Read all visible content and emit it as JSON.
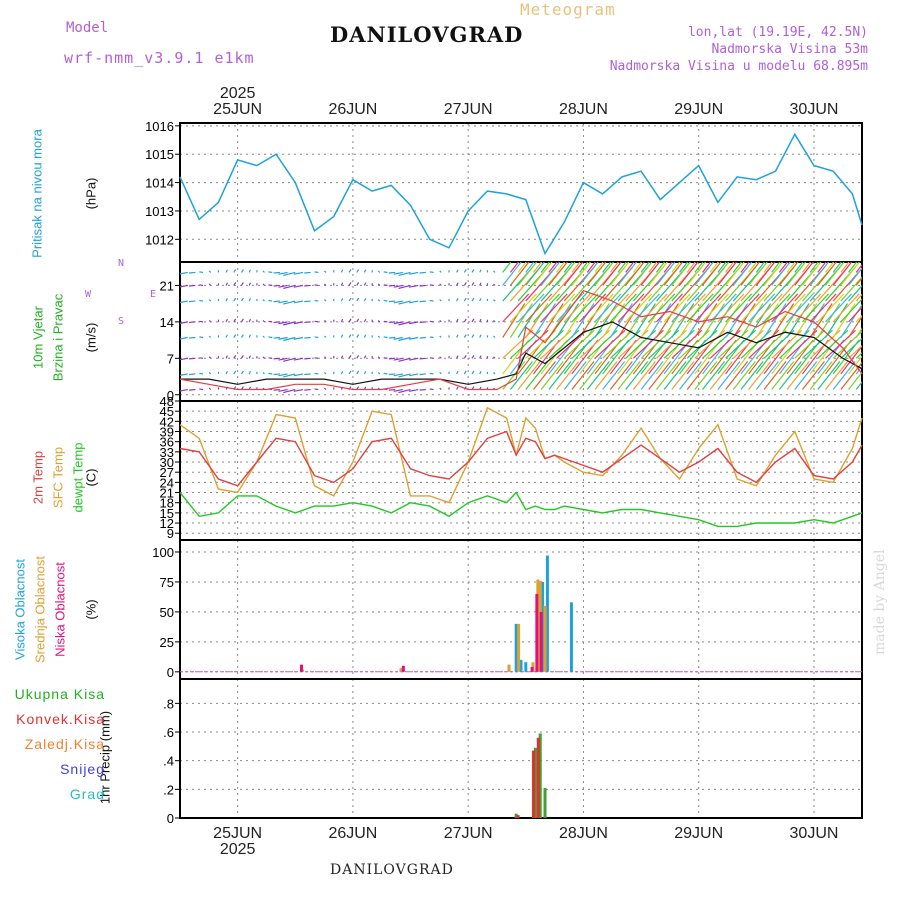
{
  "header": {
    "model_label": "Model",
    "model_name": "wrf-nmm_v3.9.1 e1km",
    "title": "DANILOVGRAD",
    "meteogram_label": "Meteogram",
    "lonlat": "lon,lat (19.19E, 42.5N)",
    "elevation": "Nadmorska Visina 53m",
    "model_elevation": "Nadmorska Visina u modelu 68.895m"
  },
  "footer": {
    "location": "DANILOVGRAD",
    "credit": "made by Angel"
  },
  "colors": {
    "pressure": "#1da2dc",
    "wind_label": "#22b022",
    "purple": "#b060d8",
    "temp2m": "#e04040",
    "sfc": "#e0a030",
    "dewpt": "#22c822",
    "high_cloud": "#1da2dc",
    "mid_cloud": "#e0a030",
    "low_cloud": "#e01080",
    "total_precip": "#40a030",
    "conv_precip": "#e03030",
    "frozen_precip": "#f08030",
    "snow": "#4040e0",
    "hail": "#20c0c0"
  },
  "chart_data": [
    {
      "type": "line",
      "id": "pressure",
      "ylabel_a": "Pritisak na nivou mora",
      "ylabel_b": "(hPa)",
      "ylim": [
        1011.2,
        1016.1
      ],
      "yticks": [
        1012,
        1013,
        1014,
        1015,
        1016
      ],
      "x_tick_labels": [
        "25JUN",
        "26JUN",
        "27JUN",
        "28JUN",
        "29JUN",
        "30JUN"
      ],
      "year_label": "2025",
      "grid": true,
      "x": [
        0,
        4,
        8,
        12,
        16,
        20,
        24,
        28,
        32,
        36,
        40,
        44,
        48,
        52,
        56,
        60,
        64,
        68,
        72,
        76,
        80,
        84,
        88,
        92,
        96,
        100,
        104,
        108,
        112,
        116,
        120,
        124,
        128,
        132,
        136,
        140,
        142
      ],
      "values": [
        1014.2,
        1012.7,
        1013.3,
        1014.8,
        1014.6,
        1015.0,
        1014.0,
        1012.3,
        1012.8,
        1014.1,
        1013.7,
        1013.9,
        1013.2,
        1012.0,
        1011.7,
        1013.0,
        1013.7,
        1013.6,
        1013.4,
        1011.5,
        1012.6,
        1014.0,
        1013.6,
        1014.2,
        1014.4,
        1013.4,
        1014.0,
        1014.6,
        1013.3,
        1014.2,
        1014.1,
        1014.4,
        1015.7,
        1014.6,
        1014.4,
        1013.6,
        1012.5
      ]
    },
    {
      "type": "line",
      "id": "wind",
      "ylabel_a": "10m Vjetar",
      "ylabel_b": "Brzina i Pravac",
      "ylabel_c": "(m/s)",
      "compass_n": "N",
      "compass_e": "E",
      "compass_w": "W",
      "compass_s": "S",
      "ylim": [
        -1.2,
        25.5
      ],
      "yticks": [
        0,
        7,
        14,
        21
      ],
      "grid": true,
      "x": [
        0,
        6,
        12,
        18,
        24,
        30,
        36,
        42,
        48,
        54,
        60,
        66,
        70,
        72,
        76,
        80,
        84,
        90,
        96,
        102,
        108,
        114,
        120,
        126,
        132,
        138,
        142
      ],
      "speed": [
        3,
        3,
        2,
        3,
        3,
        3,
        2,
        3,
        3,
        3,
        2,
        3,
        4,
        8,
        6,
        9,
        12,
        14,
        11,
        10,
        9,
        12,
        10,
        12,
        11,
        7,
        5
      ],
      "gust": [
        3,
        2,
        1,
        1,
        2,
        2,
        1,
        1,
        2,
        3,
        1,
        1,
        3,
        13,
        10,
        15,
        20,
        18,
        15,
        16,
        14,
        15,
        13,
        16,
        14,
        9,
        4
      ],
      "arrow_rows": [
        1,
        4,
        7,
        11,
        14,
        18,
        21,
        23.5
      ]
    },
    {
      "type": "line",
      "id": "temperature",
      "ylabel_a": "2m Temp",
      "ylabel_b": "SFC Temp",
      "ylabel_c": "dewpt Temp",
      "ylabel_d": "(C)",
      "ylim": [
        7,
        48
      ],
      "yticks": [
        9,
        12,
        15,
        18,
        21,
        24,
        27,
        30,
        33,
        36,
        39,
        42,
        45,
        48
      ],
      "grid": true,
      "x": [
        0,
        4,
        8,
        12,
        16,
        20,
        24,
        28,
        32,
        36,
        40,
        44,
        48,
        52,
        56,
        60,
        64,
        68,
        70,
        72,
        74,
        76,
        78,
        80,
        84,
        88,
        92,
        96,
        100,
        104,
        108,
        112,
        116,
        120,
        124,
        128,
        132,
        136,
        140,
        142
      ],
      "t2m": [
        34,
        33,
        25,
        23,
        30,
        37,
        36,
        26,
        24,
        28,
        36,
        37,
        28,
        26,
        25,
        30,
        37,
        39,
        32,
        37,
        36,
        31,
        32,
        31,
        29,
        27,
        31,
        35,
        31,
        27,
        30,
        34,
        27,
        24,
        30,
        34,
        26,
        25,
        30,
        35
      ],
      "tsfc": [
        41,
        37,
        22,
        21,
        30,
        44,
        43,
        23,
        20,
        30,
        45,
        44,
        20,
        20,
        18,
        30,
        46,
        43,
        32,
        43,
        40,
        31,
        32,
        30,
        27,
        26,
        32,
        40,
        31,
        25,
        34,
        41,
        25,
        23,
        32,
        39,
        25,
        24,
        34,
        43
      ],
      "dewpt": [
        21,
        14,
        15,
        20,
        20,
        17,
        15,
        17,
        17,
        18,
        17,
        15,
        18,
        17,
        14,
        18,
        20,
        18,
        21,
        16,
        17,
        16,
        16,
        17,
        16,
        15,
        16,
        16,
        15,
        14,
        13,
        11,
        11,
        12,
        12,
        12,
        13,
        12,
        14,
        15
      ]
    },
    {
      "type": "bar",
      "id": "clouds",
      "ylabel_a": "Visoka Oblacnost",
      "ylabel_b": "Srednja Oblacnost",
      "ylabel_c": "Niska Oblacnost",
      "ylabel_d": "(%)",
      "ylim": [
        -6,
        110
      ],
      "yticks": [
        0,
        25,
        50,
        75,
        100
      ],
      "grid": true,
      "series": [
        {
          "name": "high",
          "x": [
            70,
            71,
            72,
            75.5,
            76.5,
            81.5
          ],
          "values": [
            40,
            10,
            8,
            75,
            97,
            58
          ]
        },
        {
          "name": "mid",
          "x": [
            25.5,
            46,
            68.5,
            70.5,
            73.5,
            74.5,
            75,
            76
          ],
          "values": [
            2,
            3,
            6,
            40,
            8,
            77,
            76,
            55
          ]
        },
        {
          "name": "low",
          "x": [
            25.3,
            46.5,
            73.3,
            74.3,
            75.2
          ],
          "values": [
            6,
            5,
            4,
            65,
            50
          ]
        }
      ]
    },
    {
      "type": "bar",
      "id": "precip",
      "ylabel_a": "1hr Precip (mm)",
      "legend": [
        "Ukupna Kisa",
        "Konvek.Kisa",
        "Zaledj.Kisa",
        "Snijeg",
        "Grad"
      ],
      "ylim": [
        0,
        0.97
      ],
      "yticks": [
        0,
        0.2,
        0.4,
        0.6,
        0.8
      ],
      "x_tick_labels": [
        "25JUN",
        "26JUN",
        "27JUN",
        "28JUN",
        "29JUN",
        "30JUN"
      ],
      "year_label": "2025",
      "grid": true,
      "series": [
        {
          "name": "total",
          "x": [
            70,
            74,
            75,
            76
          ],
          "values": [
            0.03,
            0.49,
            0.59,
            0.21
          ]
        },
        {
          "name": "conv",
          "x": [
            70.4,
            73.6,
            74.6
          ],
          "values": [
            0.02,
            0.47,
            0.56
          ]
        }
      ]
    }
  ]
}
